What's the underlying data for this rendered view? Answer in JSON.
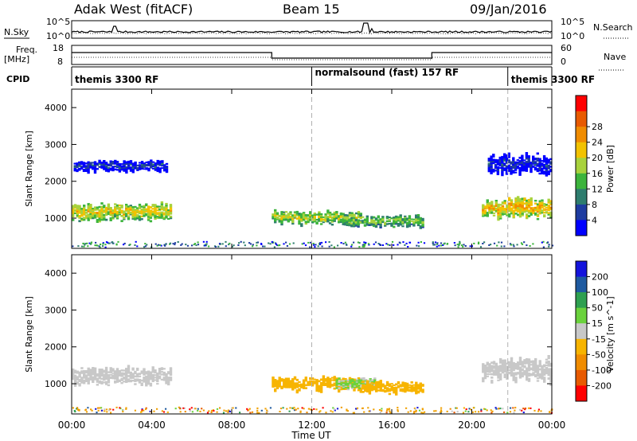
{
  "header": {
    "radar": "Adak West (fitACF)",
    "beam": "Beam 15",
    "date": "09/Jan/2016"
  },
  "strip_labels": {
    "nsky": "N.Sky",
    "nsearch": "N.Search",
    "freq_line1": "Freq.",
    "freq_line2": "[MHz]",
    "nave": "Nave",
    "cpid": "CPID",
    "noise_top_left": "10^5",
    "noise_bottom_left": "10^0",
    "noise_top_right": "10^5",
    "noise_bottom_right": "10^0",
    "freq_top": "18",
    "freq_bottom": "8",
    "nave_top": "60",
    "nave_bottom": "0"
  },
  "cpid_segments": [
    {
      "label": "themis 3300 RF",
      "start_hour": 0
    },
    {
      "label": "normalsound (fast) 157 RF",
      "start_hour": 12
    },
    {
      "label": "themis 3300 RF",
      "start_hour": 21.8
    }
  ],
  "colors": {
    "power_scale": [
      "#0000ff",
      "#1e3ca0",
      "#2e7d6e",
      "#3cb43c",
      "#a8d23c",
      "#f2c200",
      "#f08c00",
      "#e85a00",
      "#ff0000"
    ],
    "velocity_scale": [
      "#ff0000",
      "#e85a00",
      "#f08c00",
      "#f7b400",
      "#c8c8c8",
      "#6ad23c",
      "#2ea050",
      "#1e5aa0",
      "#1414dc"
    ],
    "ground_scatter": "#c8c8c8"
  },
  "chart_data": [
    {
      "type": "heatmap",
      "panel": "power",
      "ylabel": "Slant Range [km]",
      "xlabel": "Time UT",
      "x_ticks": [
        "00:00",
        "04:00",
        "08:00",
        "12:00",
        "16:00",
        "20:00",
        "00:00"
      ],
      "x_tick_hours": [
        0,
        4,
        8,
        12,
        16,
        20,
        24
      ],
      "ylim": [
        180,
        4500
      ],
      "y_ticks": [
        1000,
        2000,
        3000,
        4000
      ],
      "colorbar": {
        "label": "Power [dB]",
        "range": [
          0,
          32
        ],
        "ticks": [
          "4",
          "8",
          "12",
          "16",
          "20",
          "24",
          "28"
        ]
      },
      "regions": [
        {
          "t0": 0.0,
          "t1": 5.0,
          "r_center": 1200,
          "thickness": 450,
          "value": 20
        },
        {
          "t0": 0.1,
          "t1": 4.8,
          "r_center": 2450,
          "thickness": 300,
          "value": 6
        },
        {
          "t0": 10.0,
          "t1": 14.5,
          "r_center": 1050,
          "thickness": 350,
          "value": 18
        },
        {
          "t0": 13.6,
          "t1": 17.6,
          "r_center": 950,
          "thickness": 300,
          "value": 16
        },
        {
          "t0": 20.5,
          "t1": 24.0,
          "r_center": 1300,
          "thickness": 500,
          "value": 22
        },
        {
          "t0": 20.8,
          "t1": 24.0,
          "r_center": 2500,
          "thickness": 500,
          "value": 6
        }
      ]
    },
    {
      "type": "heatmap",
      "panel": "velocity",
      "ylabel": "Slant Range [km]",
      "xlabel": "Time UT",
      "x_ticks": [
        "00:00",
        "04:00",
        "08:00",
        "12:00",
        "16:00",
        "20:00",
        "00:00"
      ],
      "x_tick_hours": [
        0,
        4,
        8,
        12,
        16,
        20,
        24
      ],
      "ylim": [
        180,
        4500
      ],
      "y_ticks": [
        1000,
        2000,
        3000,
        4000
      ],
      "colorbar": {
        "label": "Velocity [m s^-1]",
        "range": [
          -250,
          250
        ],
        "ticks": [
          "200",
          "100",
          "50",
          "15",
          "-15",
          "-50",
          "-100",
          "-200"
        ]
      },
      "regions": [
        {
          "t0": 0.0,
          "t1": 5.0,
          "r_center": 1250,
          "thickness": 450,
          "value": 0
        },
        {
          "t0": 10.0,
          "t1": 14.5,
          "r_center": 1050,
          "thickness": 350,
          "value": -40
        },
        {
          "t0": 13.2,
          "t1": 15.2,
          "r_center": 1050,
          "thickness": 300,
          "value": 30
        },
        {
          "t0": 14.5,
          "t1": 17.6,
          "r_center": 950,
          "thickness": 300,
          "value": -35
        },
        {
          "t0": 20.5,
          "t1": 24.0,
          "r_center": 1400,
          "thickness": 600,
          "value": 0
        }
      ]
    }
  ]
}
